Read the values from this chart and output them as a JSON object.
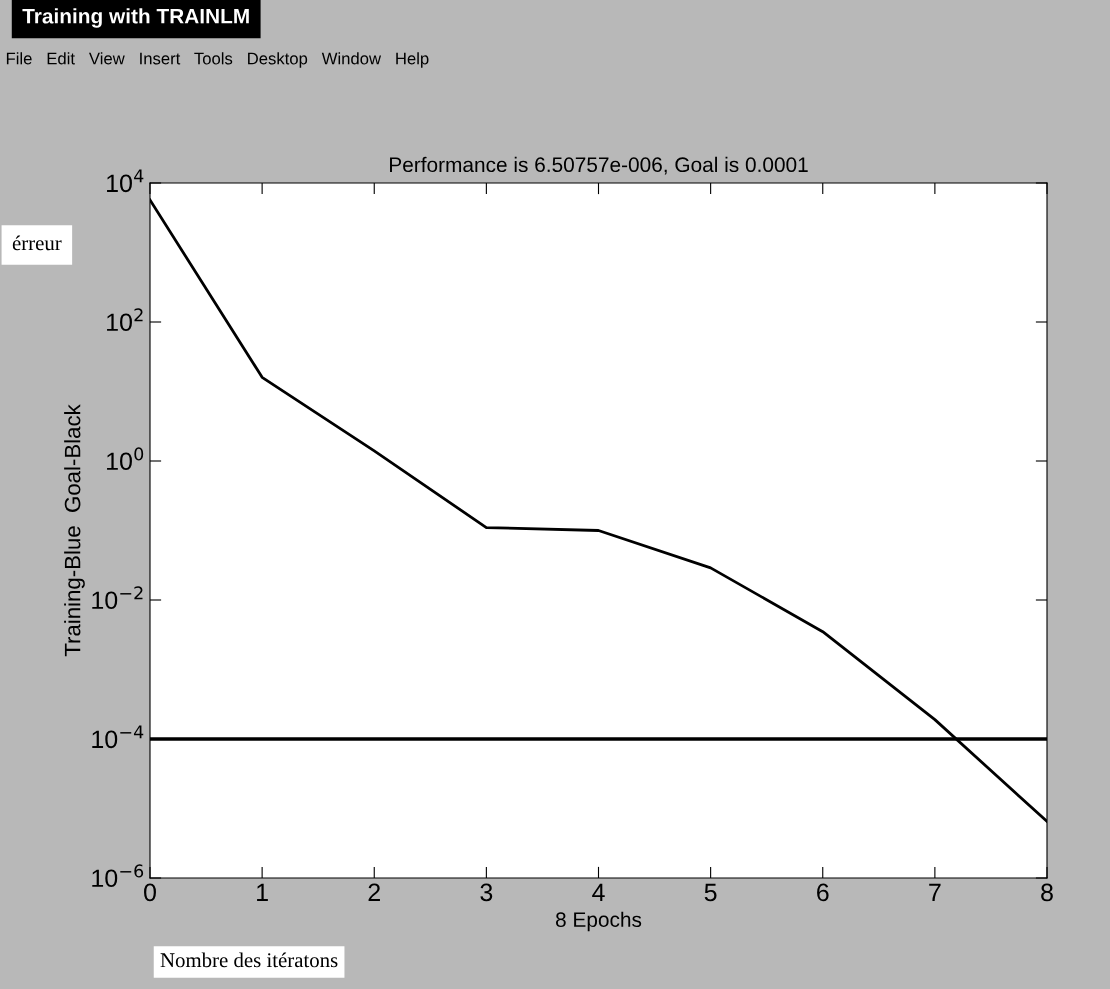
{
  "chart_data": {
    "type": "line",
    "title": "Performance is 6.50757e-006, Goal is 0.0001",
    "xlabel": "8 Epochs",
    "ylabel": "Training-Blue  Goal-Black",
    "annotations": [
      "Training with TRAINLM",
      "File   Edit   View   Insert   Tools   Desktop   Window   Help",
      "érreur",
      "Nombre des itératons"
    ],
    "x": [
      0,
      1,
      2,
      3,
      4,
      5,
      6,
      7,
      8
    ],
    "series": [
      {
        "color": "#000000",
        "values": [
          5700,
          16,
          1.4,
          0.11,
          0.1,
          0.029,
          0.0035,
          0.00019,
          6.50757e-06
        ]
      }
    ],
    "ref_lines": [
      {
        "axis": "y",
        "value": 0.0001,
        "color": "#000000"
      }
    ],
    "log": "y",
    "xlim": [
      0,
      8
    ],
    "ylim": [
      1e-06,
      10000
    ],
    "xticks": [
      0,
      1,
      2,
      3,
      4,
      5,
      6,
      7,
      8
    ],
    "yticks": [
      {
        "value": 1e-06,
        "label": "10$^{−6}$"
      },
      {
        "value": 0.0001,
        "label": "10$^{−4}$"
      },
      {
        "value": 0.01,
        "label": "10$^{−2}$"
      },
      {
        "value": 1,
        "label": "10$^{0}$"
      },
      {
        "value": 100,
        "label": "10$^{2}$"
      },
      {
        "value": 10000,
        "label": "10$^{4}$"
      }
    ],
    "grid": false,
    "legend": false
  }
}
